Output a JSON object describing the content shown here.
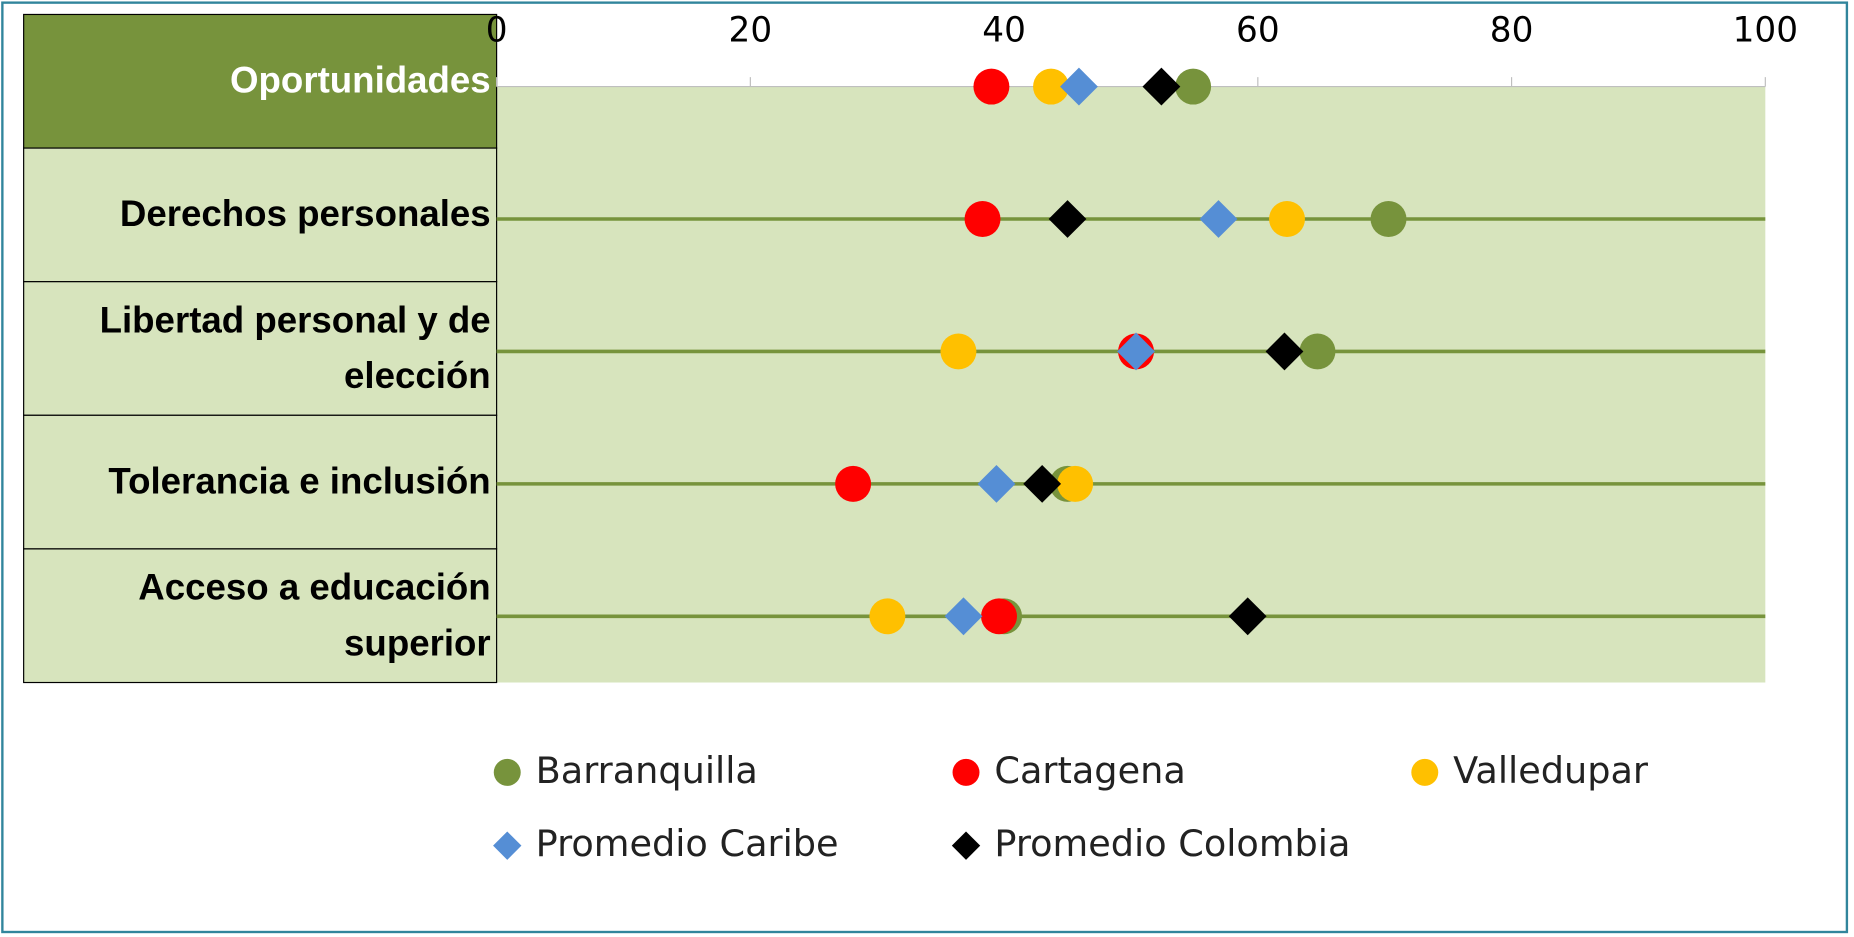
{
  "chart_data": {
    "type": "dot",
    "categories": [
      "Oportunidades",
      "Derechos personales",
      "Libertad personal y de elección",
      "Tolerancia e inclusión",
      "Acceso a educación superior"
    ],
    "series": [
      {
        "name": "Barranquilla",
        "color": "#77933c",
        "marker": "circle",
        "values": [
          54.9,
          70.3,
          64.7,
          45.0,
          40.0
        ]
      },
      {
        "name": "Cartagena",
        "color": "#ff0000",
        "marker": "circle",
        "values": [
          39.0,
          38.3,
          50.4,
          28.1,
          39.6
        ]
      },
      {
        "name": "Valledupar",
        "color": "#ffc000",
        "marker": "circle",
        "values": [
          43.7,
          62.3,
          36.4,
          45.6,
          30.8
        ]
      },
      {
        "name": "Promedio Caribe",
        "color": "#558ed5",
        "marker": "diamond",
        "values": [
          45.9,
          56.9,
          50.4,
          39.4,
          36.8
        ]
      },
      {
        "name": "Promedio Colombia",
        "color": "#000000",
        "marker": "diamond",
        "values": [
          52.4,
          45.0,
          62.1,
          43.0,
          59.2
        ]
      }
    ],
    "xlim": [
      0,
      100
    ],
    "xticks": [
      0,
      20,
      40,
      60,
      80,
      100
    ]
  }
}
